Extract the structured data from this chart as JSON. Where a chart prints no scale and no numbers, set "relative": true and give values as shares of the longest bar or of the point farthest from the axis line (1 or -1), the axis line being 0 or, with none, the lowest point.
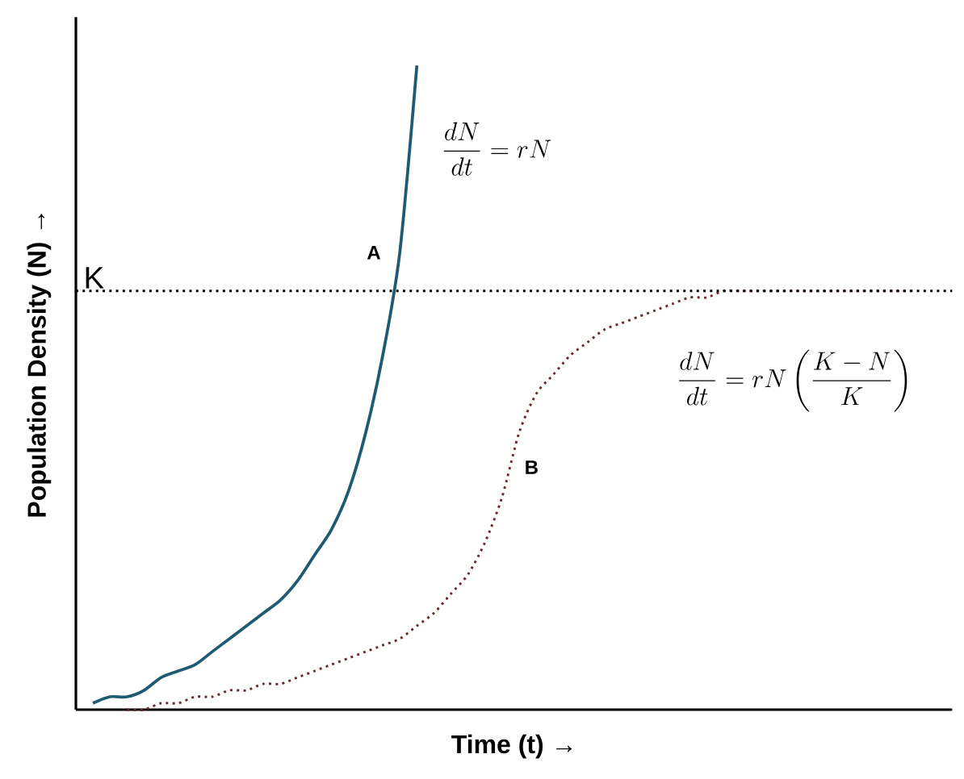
{
  "chart_data": {
    "type": "line",
    "relative": true,
    "xlabel": "Time (t) →",
    "ylabel": "Population Density (N) →",
    "categories": [
      null,
      null,
      null,
      null,
      null,
      null,
      null,
      null,
      null,
      null,
      null,
      null,
      null,
      null,
      null,
      null,
      null,
      null,
      null,
      null,
      null,
      null,
      null,
      null,
      null,
      null,
      null,
      null,
      null,
      null,
      null,
      null,
      null,
      null,
      null,
      null,
      null,
      null,
      null,
      null,
      null,
      null,
      null,
      null,
      null,
      null,
      null,
      null,
      null,
      null
    ],
    "series": [
      {
        "color": "#1f5a73",
        "line_style": "solid",
        "values": [
          0.01,
          0.02,
          0.02,
          0.03,
          0.05,
          0.06,
          0.07,
          0.09,
          0.11,
          0.13,
          0.15,
          0.17,
          0.2,
          0.24,
          0.28,
          0.34,
          0.43,
          0.55,
          0.71,
          1.0,
          null,
          null,
          null,
          null,
          null,
          null,
          null,
          null,
          null,
          null,
          null,
          null,
          null,
          null,
          null,
          null,
          null,
          null,
          null,
          null,
          null,
          null,
          null,
          null,
          null,
          null,
          null,
          null,
          null,
          null
        ]
      },
      {
        "color": "#6b2a2a",
        "line_style": "dotted",
        "values": [
          null,
          null,
          0,
          0,
          0.01,
          0.01,
          0.02,
          0.02,
          0.03,
          0.03,
          0.04,
          0.04,
          0.05,
          0.06,
          0.07,
          0.08,
          0.09,
          0.1,
          0.11,
          0.13,
          0.15,
          0.18,
          0.21,
          0.26,
          0.33,
          0.43,
          0.49,
          0.52,
          0.55,
          0.57,
          0.59,
          0.6,
          0.61,
          0.62,
          0.63,
          0.64,
          0.64,
          0.65,
          0.65,
          0.65,
          0.65,
          0.65,
          0.65,
          0.65,
          0.65,
          0.65,
          0.65,
          0.65,
          0.65,
          null
        ]
      }
    ],
    "ref_lines": [
      {
        "axis": "y",
        "value": 0.65,
        "label": "K",
        "line_style": "dotted",
        "color": "#000000"
      }
    ],
    "annotations": [
      "\\mathbf{A}",
      "\\mathbf{B}",
      "\\frac{dN}{dt}=rN",
      "\\frac{dN}{dt}=rN\\left(\\frac{K-N}{K}\\right)"
    ]
  }
}
